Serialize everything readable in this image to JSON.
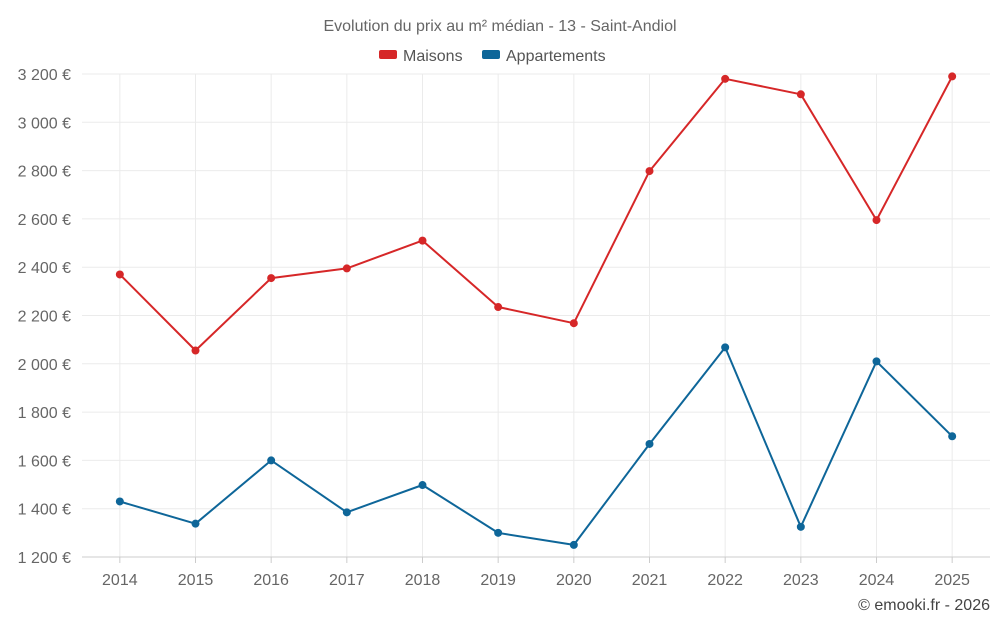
{
  "chart_data": {
    "type": "line",
    "title": "Evolution du prix au m² médian - 13 - Saint-Andiol",
    "categories": [
      "2014",
      "2015",
      "2016",
      "2017",
      "2018",
      "2019",
      "2020",
      "2021",
      "2022",
      "2023",
      "2024",
      "2025"
    ],
    "y_ticks": [
      "1 200 €",
      "1 400 €",
      "1 600 €",
      "1 800 €",
      "2 000 €",
      "2 200 €",
      "2 400 €",
      "2 600 €",
      "2 800 €",
      "3 000 €",
      "3 200 €"
    ],
    "y_tick_values": [
      1200,
      1400,
      1600,
      1800,
      2000,
      2200,
      2400,
      2600,
      2800,
      3000,
      3200
    ],
    "ylim": [
      1200,
      3200
    ],
    "grid": true,
    "legend_position": "top-center",
    "series": [
      {
        "name": "Maisons",
        "color": "#d62728",
        "values": [
          2370,
          2055,
          2355,
          2395,
          2510,
          2235,
          2168,
          2798,
          3180,
          3116,
          2595,
          3190
        ]
      },
      {
        "name": "Appartements",
        "color": "#0e6699",
        "values": [
          1430,
          1338,
          1600,
          1385,
          1498,
          1300,
          1250,
          1668,
          2068,
          1325,
          2010,
          1700
        ]
      }
    ],
    "credit": "© emooki.fr - 2026"
  }
}
